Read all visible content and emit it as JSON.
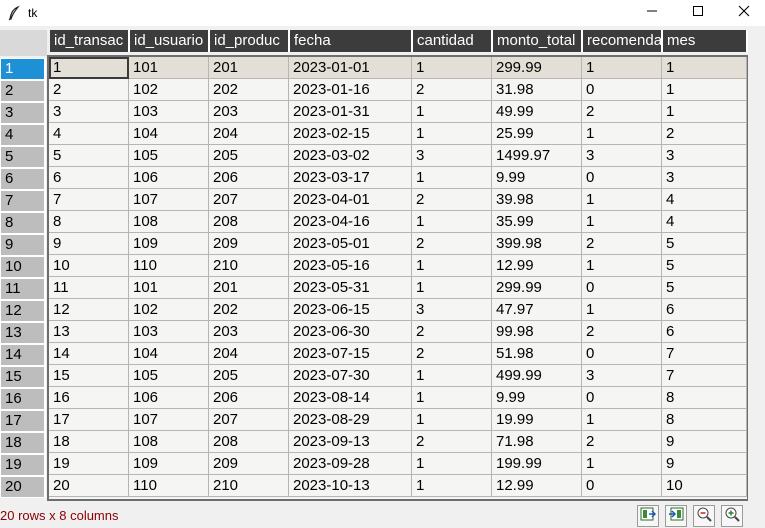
{
  "window": {
    "title": "tk",
    "icon": "feather-icon"
  },
  "table": {
    "columns": [
      "id_transac",
      "id_usuario",
      "id_produc",
      "fecha",
      "cantidad",
      "monto_total",
      "recomenda",
      "mes"
    ],
    "rows": [
      [
        "1",
        "101",
        "201",
        "2023-01-01",
        "1",
        "299.99",
        "1",
        "1"
      ],
      [
        "2",
        "102",
        "202",
        "2023-01-16",
        "2",
        "31.98",
        "0",
        "1"
      ],
      [
        "3",
        "103",
        "203",
        "2023-01-31",
        "1",
        "49.99",
        "2",
        "1"
      ],
      [
        "4",
        "104",
        "204",
        "2023-02-15",
        "1",
        "25.99",
        "1",
        "2"
      ],
      [
        "5",
        "105",
        "205",
        "2023-03-02",
        "3",
        "1499.97",
        "3",
        "3"
      ],
      [
        "6",
        "106",
        "206",
        "2023-03-17",
        "1",
        "9.99",
        "0",
        "3"
      ],
      [
        "7",
        "107",
        "207",
        "2023-04-01",
        "2",
        "39.98",
        "1",
        "4"
      ],
      [
        "8",
        "108",
        "208",
        "2023-04-16",
        "1",
        "35.99",
        "1",
        "4"
      ],
      [
        "9",
        "109",
        "209",
        "2023-05-01",
        "2",
        "399.98",
        "2",
        "5"
      ],
      [
        "10",
        "110",
        "210",
        "2023-05-16",
        "1",
        "12.99",
        "1",
        "5"
      ],
      [
        "11",
        "101",
        "201",
        "2023-05-31",
        "1",
        "299.99",
        "0",
        "5"
      ],
      [
        "12",
        "102",
        "202",
        "2023-06-15",
        "3",
        "47.97",
        "1",
        "6"
      ],
      [
        "13",
        "103",
        "203",
        "2023-06-30",
        "2",
        "99.98",
        "2",
        "6"
      ],
      [
        "14",
        "104",
        "204",
        "2023-07-15",
        "2",
        "51.98",
        "0",
        "7"
      ],
      [
        "15",
        "105",
        "205",
        "2023-07-30",
        "1",
        "499.99",
        "3",
        "7"
      ],
      [
        "16",
        "106",
        "206",
        "2023-08-14",
        "1",
        "9.99",
        "0",
        "8"
      ],
      [
        "17",
        "107",
        "207",
        "2023-08-29",
        "1",
        "19.99",
        "1",
        "8"
      ],
      [
        "18",
        "108",
        "208",
        "2023-09-13",
        "2",
        "71.98",
        "2",
        "9"
      ],
      [
        "19",
        "109",
        "209",
        "2023-09-28",
        "1",
        "199.99",
        "1",
        "9"
      ],
      [
        "20",
        "110",
        "210",
        "2023-10-13",
        "1",
        "12.99",
        "0",
        "10"
      ]
    ],
    "row_labels": [
      "1",
      "2",
      "3",
      "4",
      "5",
      "6",
      "7",
      "8",
      "9",
      "10",
      "11",
      "12",
      "13",
      "14",
      "15",
      "16",
      "17",
      "18",
      "19",
      "20"
    ],
    "selected_row": 1
  },
  "status": {
    "text": "20 rows x 8 columns"
  },
  "toolbar": {
    "icons": [
      "export-icon",
      "import-icon",
      "zoom-out-icon",
      "zoom-in-icon"
    ]
  },
  "colors": {
    "header_bg": "#3c3c3c",
    "selected_index_bg": "#1e90d6",
    "status_text": "#8b0000"
  }
}
